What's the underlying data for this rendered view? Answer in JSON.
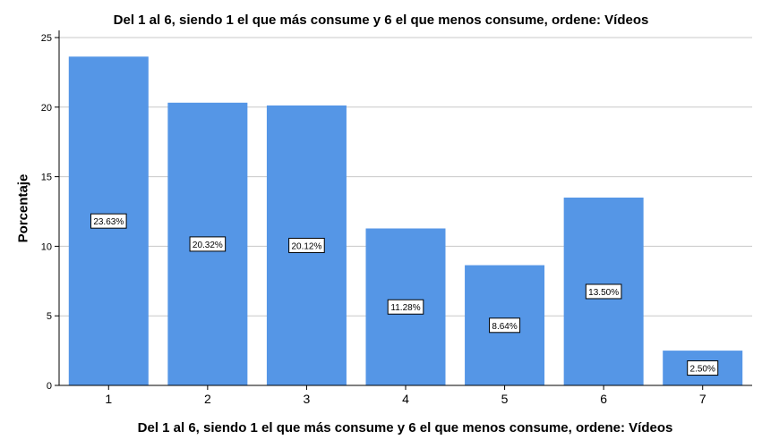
{
  "chart_data": {
    "type": "bar",
    "title": "Del 1 al 6, siendo 1 el que más consume y 6 el que menos consume, ordene: Vídeos",
    "xlabel": "Del 1 al 6, siendo 1 el que más consume y 6 el que menos consume, ordene: Vídeos",
    "ylabel": "Porcentaje",
    "categories": [
      "1",
      "2",
      "3",
      "4",
      "5",
      "6",
      "7"
    ],
    "values": [
      23.63,
      20.32,
      20.12,
      11.28,
      8.64,
      13.5,
      2.5
    ],
    "data_labels": [
      "23.63%",
      "20.32%",
      "20.12%",
      "11.28%",
      "8.64%",
      "13.50%",
      "2.50%"
    ],
    "ylim": [
      0,
      25
    ],
    "yticks": [
      "0",
      "5",
      "10",
      "15",
      "20",
      "25"
    ],
    "grid": true,
    "legend": "none",
    "bar_color": "#5596e6"
  }
}
